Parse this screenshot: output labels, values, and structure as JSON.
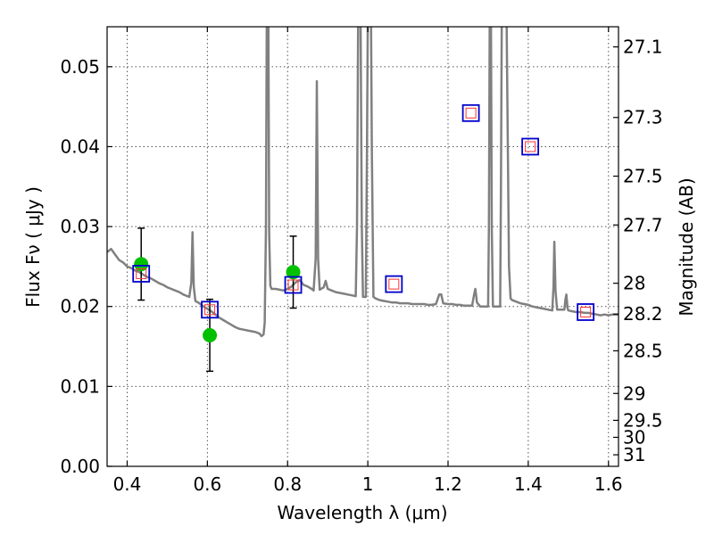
{
  "chart_data": {
    "type": "scatter",
    "xlabel": "Wavelength  λ (μm)",
    "ylabel": "Flux  Fν  ( μJy )",
    "y2label": "Magnitude (AB)",
    "xlim": [
      0.35,
      1.625
    ],
    "ylim": [
      0.0,
      0.055
    ],
    "grid": true,
    "x_ticks": [
      0.4,
      0.6,
      0.8,
      1.0,
      1.2,
      1.4,
      1.6
    ],
    "x_tick_labels": [
      "0.4",
      "0.6",
      "0.8",
      "1",
      "1.2",
      "1.4",
      "1.6"
    ],
    "y_ticks": [
      0.0,
      0.01,
      0.02,
      0.03,
      0.04,
      0.05
    ],
    "y_tick_labels": [
      "0.00",
      "0.01",
      "0.02",
      "0.03",
      "0.04",
      "0.05"
    ],
    "y2_ticks": [
      "27.1",
      "27.3",
      "27.5",
      "27.7",
      "28",
      "28.2",
      "28.5",
      "29",
      "29.5",
      "30",
      "31"
    ],
    "colors": {
      "spectrum": "#808080",
      "observed": "#00c000",
      "model_square": "#0000cc",
      "model_inner": "#ff3333",
      "errorbar": "#000000"
    },
    "spectrum": [
      [
        0.35,
        0.0268
      ],
      [
        0.36,
        0.0272
      ],
      [
        0.37,
        0.0265
      ],
      [
        0.38,
        0.0258
      ],
      [
        0.39,
        0.0255
      ],
      [
        0.4,
        0.025
      ],
      [
        0.41,
        0.0248
      ],
      [
        0.42,
        0.0245
      ],
      [
        0.43,
        0.0243
      ],
      [
        0.44,
        0.024
      ],
      [
        0.45,
        0.0237
      ],
      [
        0.46,
        0.0235
      ],
      [
        0.47,
        0.0232
      ],
      [
        0.48,
        0.0229
      ],
      [
        0.49,
        0.0227
      ],
      [
        0.5,
        0.0224
      ],
      [
        0.51,
        0.0222
      ],
      [
        0.52,
        0.022
      ],
      [
        0.53,
        0.0218
      ],
      [
        0.54,
        0.0215
      ],
      [
        0.55,
        0.0213
      ],
      [
        0.555,
        0.0212
      ],
      [
        0.56,
        0.023
      ],
      [
        0.563,
        0.0293
      ],
      [
        0.566,
        0.0225
      ],
      [
        0.57,
        0.0207
      ],
      [
        0.58,
        0.0204
      ],
      [
        0.59,
        0.02
      ],
      [
        0.6,
        0.0197
      ],
      [
        0.61,
        0.0194
      ],
      [
        0.62,
        0.019
      ],
      [
        0.63,
        0.0186
      ],
      [
        0.64,
        0.0183
      ],
      [
        0.65,
        0.018
      ],
      [
        0.66,
        0.0177
      ],
      [
        0.67,
        0.0174
      ],
      [
        0.68,
        0.0172
      ],
      [
        0.69,
        0.0171
      ],
      [
        0.7,
        0.017
      ],
      [
        0.71,
        0.0169
      ],
      [
        0.72,
        0.0168
      ],
      [
        0.73,
        0.0166
      ],
      [
        0.735,
        0.0163
      ],
      [
        0.74,
        0.0165
      ],
      [
        0.743,
        0.018
      ],
      [
        0.746,
        0.03
      ],
      [
        0.748,
        0.056
      ],
      [
        0.752,
        0.056
      ],
      [
        0.754,
        0.029
      ],
      [
        0.757,
        0.0226
      ],
      [
        0.76,
        0.0222
      ],
      [
        0.77,
        0.0222
      ],
      [
        0.78,
        0.0221
      ],
      [
        0.79,
        0.022
      ],
      [
        0.8,
        0.0222
      ],
      [
        0.81,
        0.0225
      ],
      [
        0.82,
        0.023
      ],
      [
        0.83,
        0.0233
      ],
      [
        0.84,
        0.0227
      ],
      [
        0.85,
        0.0225
      ],
      [
        0.86,
        0.0222
      ],
      [
        0.865,
        0.022
      ],
      [
        0.87,
        0.026
      ],
      [
        0.873,
        0.0482
      ],
      [
        0.876,
        0.026
      ],
      [
        0.88,
        0.0221
      ],
      [
        0.89,
        0.0224
      ],
      [
        0.895,
        0.0232
      ],
      [
        0.9,
        0.0222
      ],
      [
        0.91,
        0.022
      ],
      [
        0.92,
        0.0218
      ],
      [
        0.93,
        0.0217
      ],
      [
        0.94,
        0.0216
      ],
      [
        0.95,
        0.0215
      ],
      [
        0.96,
        0.0214
      ],
      [
        0.97,
        0.0213
      ],
      [
        0.973,
        0.03
      ],
      [
        0.976,
        0.056
      ],
      [
        0.982,
        0.056
      ],
      [
        0.985,
        0.03
      ],
      [
        0.988,
        0.0212
      ],
      [
        0.995,
        0.0212
      ],
      [
        0.998,
        0.04
      ],
      [
        1.0,
        0.056
      ],
      [
        1.008,
        0.056
      ],
      [
        1.01,
        0.04
      ],
      [
        1.014,
        0.0212
      ],
      [
        1.02,
        0.021
      ],
      [
        1.03,
        0.0208
      ],
      [
        1.04,
        0.0207
      ],
      [
        1.05,
        0.0206
      ],
      [
        1.06,
        0.0205
      ],
      [
        1.07,
        0.0205
      ],
      [
        1.08,
        0.0204
      ],
      [
        1.09,
        0.0204
      ],
      [
        1.1,
        0.0204
      ],
      [
        1.11,
        0.0203
      ],
      [
        1.12,
        0.0203
      ],
      [
        1.13,
        0.0203
      ],
      [
        1.14,
        0.0203
      ],
      [
        1.15,
        0.0202
      ],
      [
        1.16,
        0.0202
      ],
      [
        1.17,
        0.0203
      ],
      [
        1.178,
        0.0215
      ],
      [
        1.183,
        0.0215
      ],
      [
        1.188,
        0.0204
      ],
      [
        1.2,
        0.0203
      ],
      [
        1.21,
        0.0203
      ],
      [
        1.22,
        0.0202
      ],
      [
        1.23,
        0.0202
      ],
      [
        1.24,
        0.0201
      ],
      [
        1.25,
        0.0201
      ],
      [
        1.26,
        0.0201
      ],
      [
        1.265,
        0.0215
      ],
      [
        1.268,
        0.0222
      ],
      [
        1.272,
        0.0205
      ],
      [
        1.28,
        0.02
      ],
      [
        1.29,
        0.02
      ],
      [
        1.3,
        0.02
      ],
      [
        1.302,
        0.03
      ],
      [
        1.304,
        0.056
      ],
      [
        1.307,
        0.056
      ],
      [
        1.309,
        0.03
      ],
      [
        1.312,
        0.02
      ],
      [
        1.32,
        0.02
      ],
      [
        1.33,
        0.02
      ],
      [
        1.332,
        0.035
      ],
      [
        1.334,
        0.056
      ],
      [
        1.346,
        0.056
      ],
      [
        1.349,
        0.04
      ],
      [
        1.352,
        0.025
      ],
      [
        1.356,
        0.021
      ],
      [
        1.36,
        0.0208
      ],
      [
        1.37,
        0.0206
      ],
      [
        1.38,
        0.0204
      ],
      [
        1.39,
        0.0203
      ],
      [
        1.4,
        0.0202
      ],
      [
        1.41,
        0.02
      ],
      [
        1.42,
        0.0199
      ],
      [
        1.43,
        0.0198
      ],
      [
        1.44,
        0.0197
      ],
      [
        1.45,
        0.0196
      ],
      [
        1.46,
        0.0195
      ],
      [
        1.463,
        0.0225
      ],
      [
        1.465,
        0.0281
      ],
      [
        1.468,
        0.022
      ],
      [
        1.472,
        0.0196
      ],
      [
        1.48,
        0.0196
      ],
      [
        1.49,
        0.0196
      ],
      [
        1.493,
        0.021
      ],
      [
        1.495,
        0.0215
      ],
      [
        1.498,
        0.0198
      ],
      [
        1.5,
        0.0195
      ],
      [
        1.51,
        0.0194
      ],
      [
        1.52,
        0.0193
      ],
      [
        1.53,
        0.0193
      ],
      [
        1.54,
        0.0192
      ],
      [
        1.55,
        0.0192
      ],
      [
        1.56,
        0.0191
      ],
      [
        1.57,
        0.019
      ],
      [
        1.58,
        0.0189
      ],
      [
        1.59,
        0.019
      ],
      [
        1.6,
        0.0189
      ],
      [
        1.61,
        0.019
      ],
      [
        1.625,
        0.019
      ]
    ],
    "observed": [
      {
        "x": 0.435,
        "y": 0.0253,
        "yerr": 0.0045
      },
      {
        "x": 0.606,
        "y": 0.0164,
        "yerr": 0.0045
      },
      {
        "x": 0.814,
        "y": 0.0243,
        "yerr": 0.0045
      }
    ],
    "model": [
      {
        "x": 0.435,
        "y": 0.0241
      },
      {
        "x": 0.606,
        "y": 0.0196
      },
      {
        "x": 0.814,
        "y": 0.0227
      },
      {
        "x": 1.065,
        "y": 0.0228
      },
      {
        "x": 1.257,
        "y": 0.0442
      },
      {
        "x": 1.405,
        "y": 0.04
      },
      {
        "x": 1.543,
        "y": 0.0193
      }
    ]
  }
}
